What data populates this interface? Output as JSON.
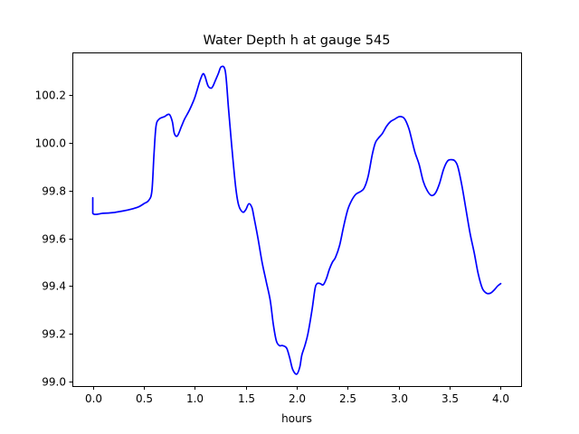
{
  "chart_data": {
    "type": "line",
    "title": "Water Depth h at gauge 545",
    "xlabel": "hours",
    "ylabel": "",
    "xlim": [
      -0.2,
      4.2
    ],
    "ylim": [
      98.98,
      100.38
    ],
    "xticks": [
      0.0,
      0.5,
      1.0,
      1.5,
      2.0,
      2.5,
      3.0,
      3.5,
      4.0
    ],
    "xtick_labels": [
      "0.0",
      "0.5",
      "1.0",
      "1.5",
      "2.0",
      "2.5",
      "3.0",
      "3.5",
      "4.0"
    ],
    "yticks": [
      99.0,
      99.2,
      99.4,
      99.6,
      99.8,
      100.0,
      100.2
    ],
    "ytick_labels": [
      "99.0",
      "99.2",
      "99.4",
      "99.6",
      "99.8",
      "100.0",
      "100.2"
    ],
    "grid": false,
    "series": [
      {
        "color": "#0000ff",
        "x": [
          0.0,
          0.0,
          0.1,
          0.2,
          0.3,
          0.4,
          0.45,
          0.5,
          0.55,
          0.58,
          0.6,
          0.62,
          0.65,
          0.7,
          0.75,
          0.78,
          0.8,
          0.83,
          0.87,
          0.9,
          0.95,
          1.0,
          1.05,
          1.08,
          1.1,
          1.13,
          1.16,
          1.18,
          1.2,
          1.23,
          1.26,
          1.3,
          1.33,
          1.36,
          1.4,
          1.43,
          1.47,
          1.5,
          1.53,
          1.56,
          1.58,
          1.62,
          1.66,
          1.7,
          1.74,
          1.77,
          1.8,
          1.83,
          1.86,
          1.9,
          1.93,
          1.96,
          2.0,
          2.03,
          2.05,
          2.08,
          2.11,
          2.15,
          2.18,
          2.2,
          2.23,
          2.26,
          2.29,
          2.32,
          2.35,
          2.38,
          2.42,
          2.46,
          2.5,
          2.54,
          2.58,
          2.62,
          2.66,
          2.7,
          2.74,
          2.77,
          2.8,
          2.84,
          2.88,
          2.92,
          2.96,
          3.0,
          3.03,
          3.06,
          3.1,
          3.13,
          3.16,
          3.2,
          3.24,
          3.28,
          3.32,
          3.36,
          3.4,
          3.44,
          3.48,
          3.52,
          3.55,
          3.58,
          3.62,
          3.66,
          3.7,
          3.74,
          3.78,
          3.82,
          3.86,
          3.9,
          3.94,
          3.97,
          4.0
        ],
        "y": [
          99.77,
          99.705,
          99.705,
          99.708,
          99.715,
          99.725,
          99.732,
          99.745,
          99.76,
          99.8,
          99.95,
          100.07,
          100.1,
          100.11,
          100.12,
          100.09,
          100.04,
          100.03,
          100.07,
          100.1,
          100.14,
          100.19,
          100.26,
          100.29,
          100.28,
          100.24,
          100.23,
          100.24,
          100.26,
          100.29,
          100.32,
          100.3,
          100.15,
          100.0,
          99.82,
          99.74,
          99.71,
          99.72,
          99.745,
          99.73,
          99.69,
          99.6,
          99.5,
          99.42,
          99.34,
          99.24,
          99.17,
          99.15,
          99.15,
          99.14,
          99.1,
          99.05,
          99.03,
          99.06,
          99.11,
          99.15,
          99.2,
          99.3,
          99.39,
          99.41,
          99.41,
          99.405,
          99.43,
          99.47,
          99.5,
          99.52,
          99.57,
          99.65,
          99.72,
          99.76,
          99.785,
          99.795,
          99.81,
          99.86,
          99.95,
          100.0,
          100.02,
          100.04,
          100.07,
          100.09,
          100.1,
          100.11,
          100.11,
          100.1,
          100.06,
          100.01,
          99.96,
          99.91,
          99.84,
          99.8,
          99.78,
          99.79,
          99.83,
          99.89,
          99.925,
          99.93,
          99.925,
          99.9,
          99.82,
          99.72,
          99.62,
          99.54,
          99.45,
          99.39,
          99.37,
          99.37,
          99.385,
          99.4,
          99.41
        ]
      }
    ]
  }
}
